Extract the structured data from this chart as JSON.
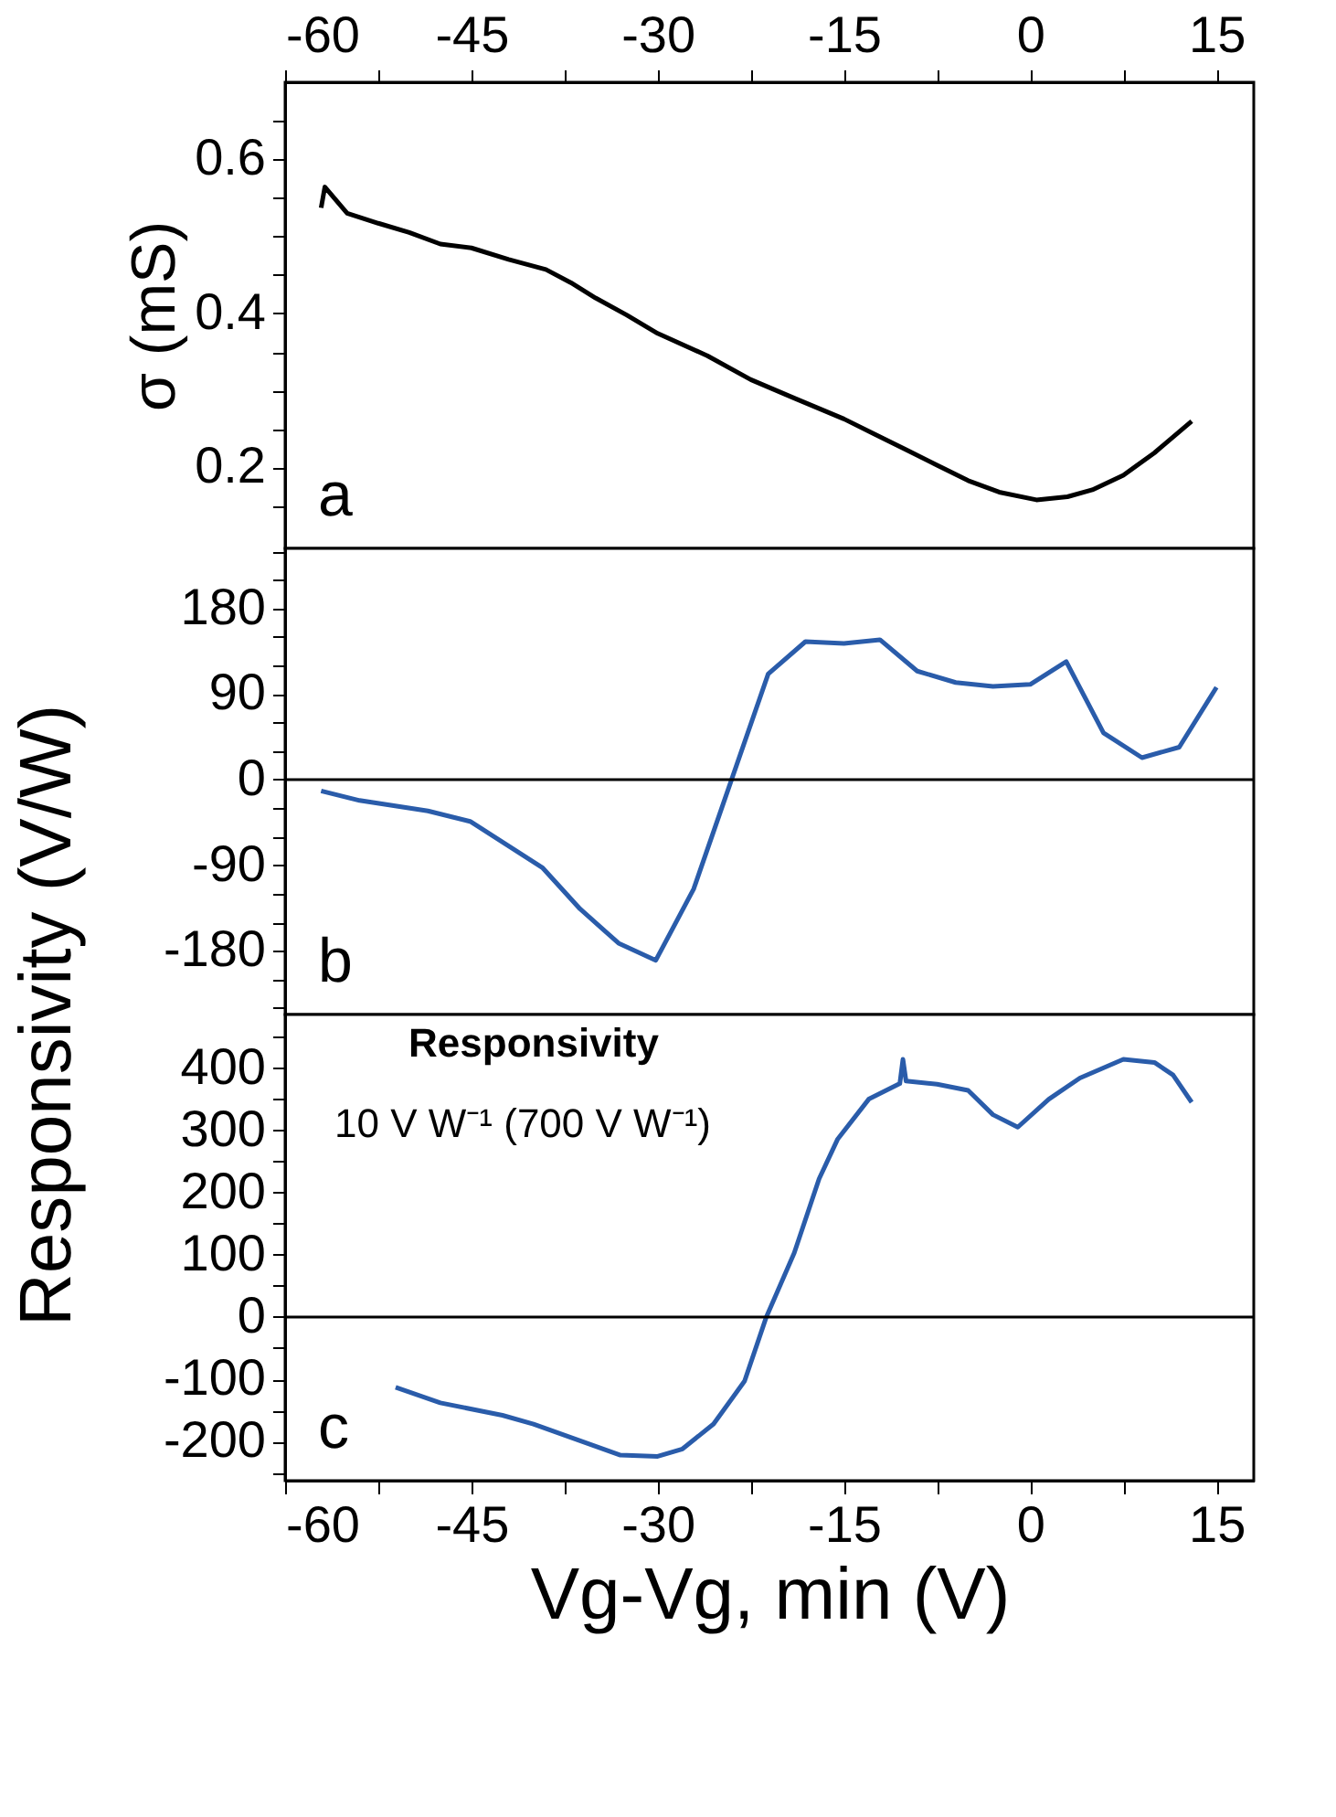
{
  "chart_data": [
    {
      "type": "line",
      "ylabel": "σ (mS)",
      "xlim": [
        -60,
        18
      ],
      "xticks": [
        -60,
        {
          "value": -52.5,
          "label": null
        },
        -45,
        {
          "value": -37.5,
          "label": null
        },
        -30,
        {
          "value": -22.5,
          "label": null
        },
        -15,
        {
          "value": -7.5,
          "label": null
        },
        0,
        {
          "value": 7.5,
          "label": null
        },
        15
      ],
      "ylim": [
        0.095,
        0.7
      ],
      "yticks": [
        {
          "value": 0.15,
          "label": null
        },
        0.2,
        {
          "value": 0.25,
          "label": null
        },
        {
          "value": 0.3,
          "label": null
        },
        {
          "value": 0.35,
          "label": null
        },
        0.4,
        {
          "value": 0.45,
          "label": null
        },
        {
          "value": 0.5,
          "label": null
        },
        {
          "value": 0.55,
          "label": null
        },
        0.6,
        {
          "value": 0.65,
          "label": null
        }
      ],
      "grid": false,
      "marker": "none",
      "line_style": "solid",
      "annotations": [
        "a"
      ],
      "series": [
        {
          "color": "#000000",
          "x": [
            -57.1,
            -56.8,
            -55,
            -52.5,
            -50,
            -47.5,
            -45,
            -42,
            -39,
            -37,
            -35,
            -32.5,
            -30,
            -26,
            -22.5,
            -19,
            -15,
            -12.5,
            -10,
            -7.5,
            -5,
            -2.5,
            0.5,
            3,
            5,
            7.5,
            10,
            13
          ],
          "values": [
            0.537,
            0.564,
            0.53,
            0.517,
            0.505,
            0.49,
            0.485,
            0.47,
            0.457,
            0.44,
            0.42,
            0.398,
            0.374,
            0.345,
            0.314,
            0.29,
            0.263,
            0.243,
            0.223,
            0.203,
            0.183,
            0.168,
            0.158,
            0.162,
            0.171,
            0.19,
            0.219,
            0.26
          ]
        }
      ]
    },
    {
      "type": "line",
      "ylabel": "Responsivity (V/W)",
      "xlim": [
        -60,
        18
      ],
      "xticks": [
        -60,
        {
          "value": -52.5,
          "label": null
        },
        -45,
        {
          "value": -37.5,
          "label": null
        },
        -30,
        {
          "value": -22.5,
          "label": null
        },
        -15,
        {
          "value": -7.5,
          "label": null
        },
        0,
        {
          "value": 7.5,
          "label": null
        },
        15
      ],
      "ylim": [
        -247,
        243
      ],
      "yticks": [
        {
          "value": -240,
          "label": null
        },
        {
          "value": -210,
          "label": null
        },
        -180,
        {
          "value": -150,
          "label": null
        },
        {
          "value": -120,
          "label": null
        },
        -90,
        {
          "value": -60,
          "label": null
        },
        {
          "value": -30,
          "label": null
        },
        0,
        {
          "value": 30,
          "label": null
        },
        {
          "value": 60,
          "label": null
        },
        90,
        {
          "value": 120,
          "label": null
        },
        {
          "value": 150,
          "label": null
        },
        180,
        {
          "value": 210,
          "label": null
        },
        {
          "value": 240,
          "label": null
        }
      ],
      "tick_labels": "y",
      "grid": false,
      "marker": "none",
      "line_style": "solid",
      "annotations": [
        "b"
      ],
      "ref_lines": [
        {
          "axis": "y",
          "value": 0,
          "color": "#000000"
        }
      ],
      "series": [
        {
          "color": "#2a5caa",
          "x": [
            -57.1,
            -54,
            -48.5,
            -45.1,
            -39.25,
            -36.25,
            -33.15,
            -30.15,
            -27.1,
            -21.1,
            -18.1,
            -15,
            -12.1,
            -9.1,
            -6,
            -3,
            0,
            2.9,
            5.9,
            9,
            12,
            15
          ],
          "values": [
            -12,
            -22,
            -33,
            -44,
            -93,
            -136,
            -172,
            -190,
            -115,
            111,
            145,
            143,
            147,
            114,
            102,
            98,
            100,
            124,
            49,
            23,
            34,
            97
          ]
        }
      ]
    },
    {
      "type": "line",
      "xlabel": "Vg-Vg, min (V)",
      "xlim": [
        -60,
        18
      ],
      "xticks": [
        -60,
        {
          "value": -52.5,
          "label": null
        },
        -45,
        {
          "value": -37.5,
          "label": null
        },
        -30,
        {
          "value": -22.5,
          "label": null
        },
        -15,
        {
          "value": -7.5,
          "label": null
        },
        0,
        {
          "value": 7.5,
          "label": null
        },
        15
      ],
      "ylim": [
        -263,
        486
      ],
      "yticks": [
        {
          "value": -250,
          "label": null
        },
        -200,
        {
          "value": -150,
          "label": null
        },
        -100,
        {
          "value": -50,
          "label": null
        },
        0,
        {
          "value": 50,
          "label": null
        },
        100,
        {
          "value": 150,
          "label": null
        },
        200,
        {
          "value": 250,
          "label": null
        },
        300,
        {
          "value": 350,
          "label": null
        },
        400,
        {
          "value": 450,
          "label": null
        }
      ],
      "grid": false,
      "marker": "none",
      "line_style": "solid",
      "annotations": [
        "c",
        "Responsivity",
        "10 V W⁻¹ (700 V W⁻¹)"
      ],
      "ref_lines": [
        {
          "axis": "y",
          "value": 0,
          "color": "#000000"
        }
      ],
      "series": [
        {
          "color": "#2a5caa",
          "x": [
            -51.1,
            -47.5,
            -42.5,
            -40,
            -36.5,
            -33,
            -30,
            -28,
            -25.5,
            -23,
            -21.25,
            -19,
            -17,
            -15.5,
            -13,
            -10.5,
            -10.25,
            -10,
            -7.5,
            -5,
            -3,
            -1,
            1.5,
            4,
            7.5,
            10,
            11.5,
            13
          ],
          "values": [
            -113,
            -138,
            -158,
            -172,
            -197,
            -222,
            -224,
            -212,
            -172,
            -103,
            0,
            103,
            222,
            286,
            350,
            375,
            414,
            379,
            374,
            364,
            325,
            305,
            350,
            384,
            414,
            409,
            389,
            345
          ]
        }
      ]
    }
  ]
}
